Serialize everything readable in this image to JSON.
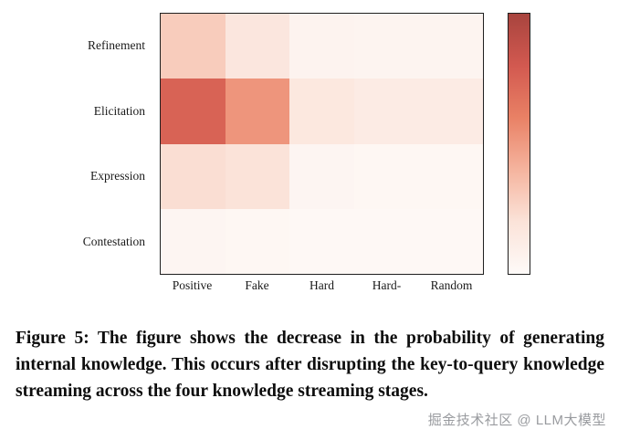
{
  "chart_data": {
    "type": "heatmap",
    "title": "",
    "xlabel": "",
    "ylabel": "",
    "rows": [
      "Refinement",
      "Elicitation",
      "Expression",
      "Contestation"
    ],
    "columns": [
      "Positive",
      "Fake",
      "Hard",
      "Hard-",
      "Random"
    ],
    "values": [
      [
        0.3,
        0.17,
        0.06,
        0.05,
        0.05
      ],
      [
        0.75,
        0.52,
        0.16,
        0.13,
        0.13
      ],
      [
        0.22,
        0.2,
        0.04,
        0.03,
        0.03
      ],
      [
        0.04,
        0.03,
        0.02,
        0.02,
        0.02
      ]
    ],
    "value_scale": [
      0,
      1
    ],
    "grid": false,
    "legend": "colorbar-right",
    "color_stops": [
      "#fefaf8",
      "#fbe3d9",
      "#f5b49e",
      "#e98165",
      "#d25950",
      "#a8443e"
    ]
  },
  "caption": {
    "label": "Figure 5:",
    "text": "The figure shows the decrease in the probability of generating internal knowledge. This occurs after disrupting the key-to-query knowledge streaming across the four knowledge streaming stages."
  },
  "watermark": "掘金技术社区 @ LLM大模型"
}
